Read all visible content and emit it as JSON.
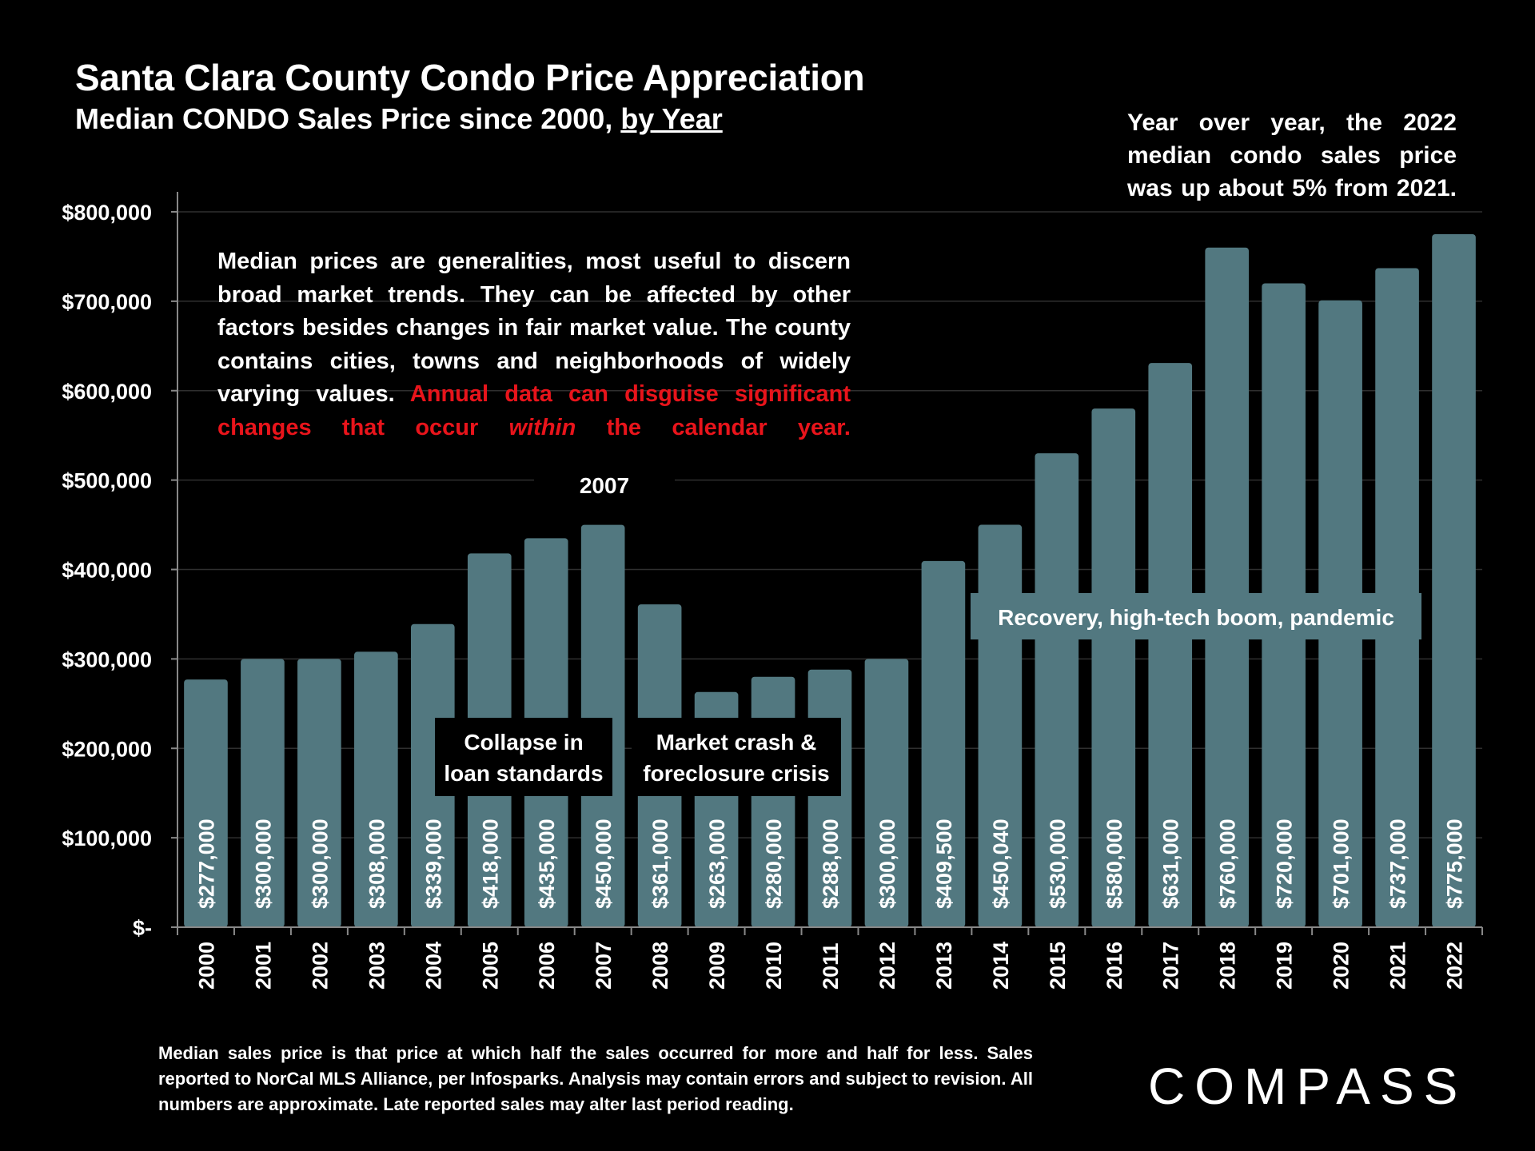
{
  "chart_data": {
    "type": "bar",
    "title": "Santa Clara County Condo Price Appreciation",
    "subtitle_main": "Median CONDO Sales Price since 2000, ",
    "subtitle_underlined": "by Year",
    "categories": [
      "2000",
      "2001",
      "2002",
      "2003",
      "2004",
      "2005",
      "2006",
      "2007",
      "2008",
      "2009",
      "2010",
      "2011",
      "2012",
      "2013",
      "2014",
      "2015",
      "2016",
      "2017",
      "2018",
      "2019",
      "2020",
      "2021",
      "2022"
    ],
    "values": [
      277000,
      300000,
      300000,
      308000,
      339000,
      418000,
      435000,
      450000,
      361000,
      263000,
      280000,
      288000,
      300000,
      409500,
      450040,
      530000,
      580000,
      631000,
      760000,
      720000,
      701000,
      737000,
      775000
    ],
    "data_labels": [
      "$277,000",
      "$300,000",
      "$300,000",
      "$308,000",
      "$339,000",
      "$418,000",
      "$435,000",
      "$450,000",
      "$361,000",
      "$263,000",
      "$280,000",
      "$288,000",
      "$300,000",
      "$409,500",
      "$450,040",
      "$530,000",
      "$580,000",
      "$631,000",
      "$760,000",
      "$720,000",
      "$701,000",
      "$737,000",
      "$775,000"
    ],
    "y_ticks": [
      0,
      100000,
      200000,
      300000,
      400000,
      500000,
      600000,
      700000,
      800000
    ],
    "y_tick_labels": [
      "$-",
      "$100,000",
      "$200,000",
      "$300,000",
      "$400,000",
      "$500,000",
      "$600,000",
      "$700,000",
      "$800,000"
    ],
    "ylim": [
      0,
      800000
    ],
    "grid": true,
    "bar_color": "#527880",
    "annotations": {
      "peak_label": "2007",
      "collapse_line1": "Collapse in",
      "collapse_line2": "loan standards",
      "crash_line1": "Market crash &",
      "crash_line2": "foreclosure crisis",
      "recovery": "Recovery, high-tech boom, pandemic"
    }
  },
  "notes": {
    "yoy": "Year over year, the 2022 median condo sales price was up about 5% from 2021.",
    "median_plain": "Median prices are generalities, most useful to discern broad market trends. They can be affected by other factors besides changes in fair market value. The county contains cities, towns and neighborhoods of widely varying values. ",
    "median_red_a": "Annual data can disguise significant changes that occur ",
    "median_red_italic": "within",
    "median_red_b": " the calendar year."
  },
  "footnote": "Median sales price is that price at which half the sales occurred for more and half for less. Sales reported to NorCal MLS Alliance, per Infosparks. Analysis may contain errors and subject to revision. All numbers are approximate. Late reported sales may alter last period reading.",
  "logo_text": "COMPASS"
}
